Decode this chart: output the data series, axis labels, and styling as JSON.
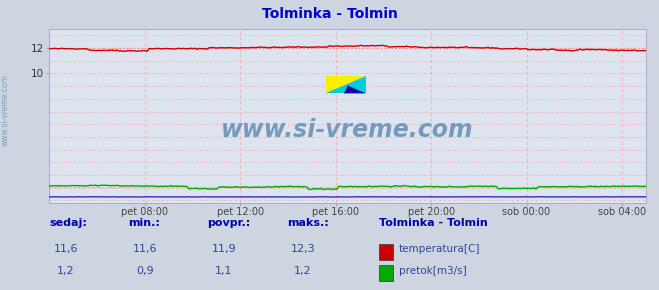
{
  "title": "Tolminka - Tolmin",
  "title_color": "#0000cc",
  "bg_color": "#ccd5e0",
  "plot_bg_color": "#dde4f0",
  "grid_color": "#ffaaaa",
  "watermark_text": "www.si-vreme.com",
  "watermark_color": "#7799bb",
  "sidebar_text": "www.si-vreme.com",
  "sidebar_color": "#7799bb",
  "ylim": [
    -0.2,
    13.5
  ],
  "yticks": [
    10,
    12
  ],
  "temp_dotted_val": 12.0,
  "flow_dotted_val": 1.05,
  "temp_color": "#cc0000",
  "flow_color": "#00aa00",
  "height_color": "#0000bb",
  "dotted_temp_color": "#ff8888",
  "dotted_flow_color": "#88cc88",
  "x_tick_labels": [
    "pet 08:00",
    "pet 12:00",
    "pet 16:00",
    "pet 20:00",
    "sob 00:00",
    "sob 04:00"
  ],
  "x_tick_positions": [
    8,
    12,
    16,
    20,
    24,
    28
  ],
  "legend_title": "Tolminka - Tolmin",
  "legend_items": [
    {
      "label": "temperatura[C]",
      "color": "#cc0000"
    },
    {
      "label": "pretok[m3/s]",
      "color": "#00aa00"
    }
  ],
  "table_headers": [
    "sedaj:",
    "min.:",
    "povpr.:",
    "maks.:"
  ],
  "table_values_temp": [
    "11,6",
    "11,6",
    "11,9",
    "12,3"
  ],
  "table_values_flow": [
    "1,2",
    "0,9",
    "1,1",
    "1,2"
  ]
}
